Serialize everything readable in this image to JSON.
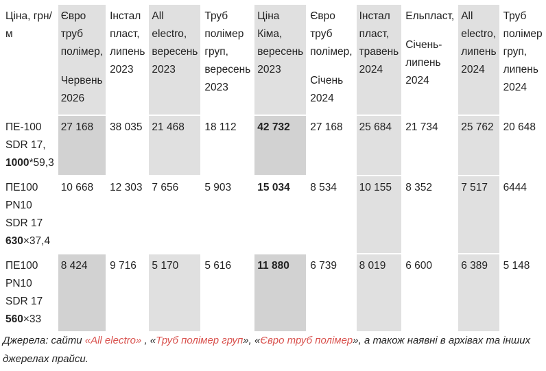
{
  "headers": [
    "Ціна, грн/м",
    [
      "Євро труб полімер,",
      "Червень 2026"
    ],
    "Інстал пласт, липень 2023",
    "All electro, вересень 2023",
    "Труб полімер груп, вересень 2023",
    "Ціна Кіма, вересень 2023",
    [
      "Євро труб полімер,",
      "Січень 2024"
    ],
    "Інстал пласт, травень 2024",
    [
      "Ельпласт,",
      "Січень-липень 2024"
    ],
    "All electro, липень 2024",
    "Труб полімер груп, липень 2024"
  ],
  "rows": [
    {
      "label_pre": "ПЕ-100 SDR 17, ",
      "label_bold": "1000",
      "label_post": "*59,3",
      "values": [
        "27 168",
        "38 035",
        "21 468",
        "18 112",
        "42 732",
        "27 168",
        "25 684",
        "21 734",
        "25 762",
        "20 648"
      ]
    },
    {
      "label_pre": "ПЕ100 PN10 SDR 17 ",
      "label_bold": "630",
      "label_post": "×37,4",
      "values": [
        "10 668",
        "12 303",
        "7 656",
        "5 903",
        "15 034",
        "8 534",
        "10 155",
        "8 352",
        "7 517",
        "6444"
      ]
    },
    {
      "label_pre": "ПЕ100 PN10 SDR 17 ",
      "label_bold": "560",
      "label_post": "×33",
      "values": [
        "8 424",
        "9 716",
        "5 170",
        "5 616",
        "11 880",
        "6 739",
        "8 019",
        "6 600",
        "6 389",
        "5 148"
      ]
    }
  ],
  "note": {
    "prefix": "Джерела: сайти ",
    "link1": "«All electro»",
    "sep1": " , «",
    "link2": "Труб полімер груп",
    "sep2": "», «",
    "link3": "Євро труб полімер",
    "suffix": "», а також наявні в архівах та інших джерелах прайси."
  }
}
